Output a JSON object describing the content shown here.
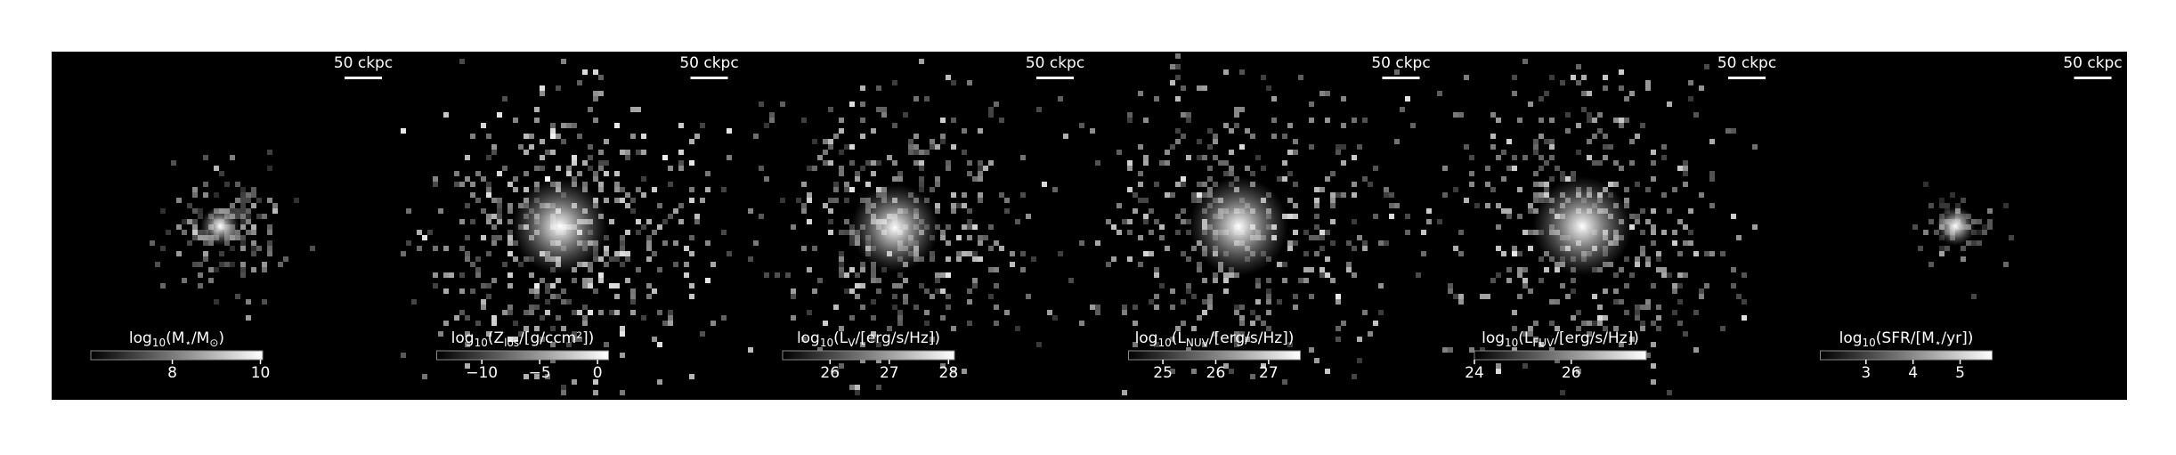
{
  "chart_data": [
    {
      "type": "image",
      "scale_bar": "50 ckpc",
      "colorbar_label": [
        "log",
        "10",
        "(M",
        "⋆",
        "/M",
        "⊙",
        ")"
      ],
      "colorbar_lim": [
        6.15,
        10.05
      ],
      "colorbar_ticks": [
        8,
        10
      ]
    },
    {
      "type": "image",
      "scale_bar": "50 ckpc",
      "colorbar_label": [
        "log",
        "10",
        "(Z",
        "los",
        "/[g/ccm²])"
      ],
      "colorbar_lim": [
        -13.9,
        0.95
      ],
      "colorbar_ticks": [
        {
          "value": -10,
          "label": "−10"
        },
        {
          "value": -5,
          "label": "−5"
        },
        0
      ]
    },
    {
      "type": "image",
      "scale_bar": "50 ckpc",
      "colorbar_label": [
        "log",
        "10",
        "(L",
        "V",
        "/[erg/s/Hz])"
      ],
      "colorbar_lim": [
        25.2,
        28.1
      ],
      "colorbar_ticks": [
        26,
        27,
        28
      ]
    },
    {
      "type": "image",
      "scale_bar": "50 ckpc",
      "colorbar_label": [
        "log",
        "10",
        "(L",
        "NUV",
        "/[erg/s/Hz])"
      ],
      "colorbar_lim": [
        24.35,
        27.6
      ],
      "colorbar_ticks": [
        25,
        26,
        27
      ]
    },
    {
      "type": "image",
      "scale_bar": "50 ckpc",
      "colorbar_label": [
        "log",
        "10",
        "(L",
        "FUV",
        "/[erg/s/Hz])"
      ],
      "colorbar_lim": [
        24,
        27.55
      ],
      "colorbar_ticks": [
        24,
        26
      ]
    },
    {
      "type": "image",
      "scale_bar": "50 ckpc",
      "colorbar_label": [
        "log",
        "10",
        "(SFR/[M",
        "⋆",
        "/yr])"
      ],
      "colorbar_lim": [
        2.03,
        5.68
      ],
      "colorbar_ticks": [
        3,
        4,
        5
      ]
    }
  ]
}
